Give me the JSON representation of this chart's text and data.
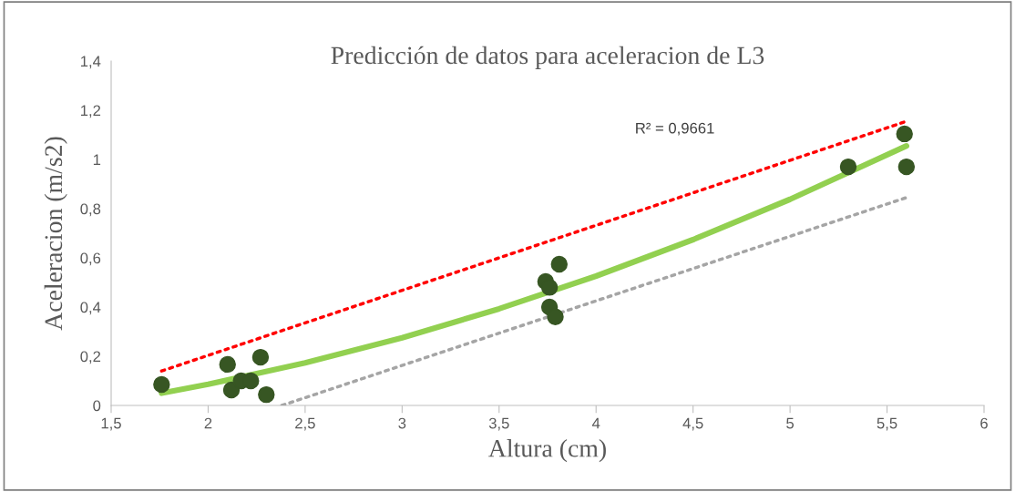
{
  "chart_data": {
    "type": "scatter",
    "title": "Predicción de datos para aceleracion de L3",
    "xlabel": "Altura (cm)",
    "ylabel": "Aceleracion (m/s2)",
    "xlim": [
      1.5,
      6
    ],
    "ylim": [
      0,
      1.4
    ],
    "xticks": [
      {
        "value": 1.5,
        "label": "1,5"
      },
      2,
      {
        "value": 2.5,
        "label": "2,5"
      },
      3,
      {
        "value": 3.5,
        "label": "3,5"
      },
      4,
      {
        "value": 4.5,
        "label": "4,5"
      },
      5,
      {
        "value": 5.5,
        "label": "5,5"
      },
      6
    ],
    "yticks": [
      0,
      {
        "value": 0.2,
        "label": "0,2"
      },
      {
        "value": 0.4,
        "label": "0,4"
      },
      {
        "value": 0.6,
        "label": "0,6"
      },
      {
        "value": 0.8,
        "label": "0,8"
      },
      1,
      {
        "value": 1.2,
        "label": "1,2"
      },
      {
        "value": 1.4,
        "label": "1,4"
      }
    ],
    "grid": false,
    "series": [
      {
        "type": "line",
        "line_style": "dotted",
        "color": "#ff0000",
        "x": [
          1.76,
          5.6
        ],
        "values": [
          0.14,
          1.155
        ]
      },
      {
        "type": "line",
        "line_style": "dotted",
        "color": "#a5a5a5",
        "x": [
          2.38,
          5.6
        ],
        "values": [
          0,
          0.845
        ]
      },
      {
        "type": "line",
        "line_style": "solid",
        "color": "#92d050",
        "x": [
          1.76,
          2,
          2.5,
          3,
          3.5,
          4,
          4.5,
          5,
          5.6
        ],
        "values": [
          0.05,
          0.086,
          0.173,
          0.275,
          0.393,
          0.526,
          0.674,
          0.838,
          1.055
        ]
      },
      {
        "marker": "circle",
        "color": "#375623",
        "x": [
          1.76,
          2.1,
          2.12,
          2.17,
          2.22,
          2.27,
          2.3,
          3.74,
          3.76,
          3.81,
          3.76,
          3.79,
          5.3,
          5.59,
          5.6
        ],
        "values": [
          0.085,
          0.167,
          0.063,
          0.1,
          0.1,
          0.196,
          0.044,
          0.504,
          0.48,
          0.574,
          0.4,
          0.36,
          0.97,
          1.104,
          0.97
        ]
      }
    ],
    "annotations": [
      "R² = 0,9661"
    ]
  }
}
